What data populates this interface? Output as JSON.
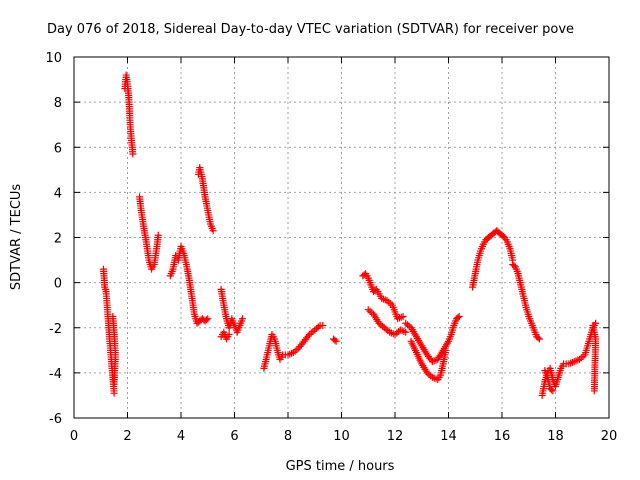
{
  "chart_data": {
    "type": "scatter",
    "title": "Day 076 of 2018, Sidereal Day-to-day VTEC variation (SDTVAR) for receiver pove",
    "xlabel": "GPS time / hours",
    "ylabel": "SDTVAR / TECUs",
    "xlim": [
      0,
      20
    ],
    "ylim": [
      -6,
      10
    ],
    "x_ticks": [
      "0",
      "2",
      "4",
      "6",
      "8",
      "10",
      "12",
      "14",
      "16",
      "18",
      "20"
    ],
    "y_ticks": [
      "-6",
      "-4",
      "-2",
      "0",
      "2",
      "4",
      "6",
      "8",
      "10"
    ],
    "grid": true,
    "marker": "+",
    "color": "#ff0000",
    "series": [
      {
        "name": "SDTVAR",
        "segments": [
          [
            [
              1.1,
              0.6
            ],
            [
              1.15,
              -0.2
            ],
            [
              1.2,
              -0.4
            ],
            [
              1.25,
              -1.2
            ],
            [
              1.3,
              -2.0
            ],
            [
              1.35,
              -2.8
            ],
            [
              1.4,
              -3.5
            ],
            [
              1.45,
              -4.2
            ],
            [
              1.5,
              -4.9
            ]
          ],
          [
            [
              1.45,
              -1.5
            ],
            [
              1.5,
              -2.2
            ],
            [
              1.55,
              -3.2
            ],
            [
              1.5,
              -4.5
            ]
          ],
          [
            [
              1.9,
              8.6
            ],
            [
              1.95,
              9.2
            ],
            [
              2.0,
              8.8
            ],
            [
              2.05,
              8.2
            ],
            [
              2.1,
              7.0
            ],
            [
              2.15,
              6.3
            ],
            [
              2.2,
              5.7
            ]
          ],
          [
            [
              2.45,
              3.8
            ],
            [
              2.5,
              3.3
            ],
            [
              2.6,
              2.5
            ],
            [
              2.7,
              1.8
            ],
            [
              2.8,
              1.0
            ],
            [
              2.9,
              0.6
            ],
            [
              3.0,
              0.8
            ],
            [
              3.1,
              1.6
            ],
            [
              3.15,
              2.1
            ]
          ],
          [
            [
              3.6,
              0.3
            ],
            [
              3.7,
              0.6
            ],
            [
              3.8,
              1.2
            ],
            [
              3.9,
              1.0
            ],
            [
              4.0,
              1.6
            ],
            [
              4.1,
              1.3
            ],
            [
              4.2,
              0.8
            ],
            [
              4.3,
              0.2
            ],
            [
              4.4,
              -0.6
            ],
            [
              4.5,
              -1.4
            ],
            [
              4.6,
              -1.8
            ],
            [
              4.7,
              -1.7
            ],
            [
              4.8,
              -1.6
            ],
            [
              4.9,
              -1.7
            ],
            [
              5.0,
              -1.6
            ]
          ],
          [
            [
              4.65,
              4.8
            ],
            [
              4.7,
              5.1
            ],
            [
              4.8,
              4.6
            ],
            [
              4.9,
              3.8
            ],
            [
              5.0,
              3.2
            ],
            [
              5.1,
              2.6
            ],
            [
              5.2,
              2.3
            ]
          ],
          [
            [
              5.5,
              -0.3
            ],
            [
              5.6,
              -1.0
            ],
            [
              5.7,
              -1.6
            ],
            [
              5.8,
              -2.0
            ],
            [
              5.9,
              -1.6
            ],
            [
              6.0,
              -1.9
            ],
            [
              6.1,
              -2.2
            ],
            [
              6.2,
              -1.9
            ],
            [
              6.3,
              -1.6
            ]
          ],
          [
            [
              5.5,
              -2.4
            ],
            [
              5.6,
              -2.2
            ],
            [
              5.7,
              -2.5
            ],
            [
              5.8,
              -2.3
            ]
          ],
          [
            [
              7.1,
              -3.8
            ],
            [
              7.2,
              -3.3
            ],
            [
              7.3,
              -2.8
            ],
            [
              7.4,
              -2.3
            ],
            [
              7.5,
              -2.5
            ],
            [
              7.6,
              -3.0
            ],
            [
              7.7,
              -3.4
            ],
            [
              7.8,
              -3.2
            ],
            [
              8.0,
              -3.2
            ],
            [
              8.2,
              -3.1
            ],
            [
              8.4,
              -2.9
            ],
            [
              8.6,
              -2.6
            ],
            [
              8.8,
              -2.3
            ],
            [
              9.0,
              -2.1
            ],
            [
              9.2,
              -1.9
            ],
            [
              9.3,
              -1.9
            ]
          ],
          [
            [
              9.7,
              -2.5
            ],
            [
              9.8,
              -2.6
            ]
          ],
          [
            [
              10.8,
              0.3
            ],
            [
              10.9,
              0.4
            ],
            [
              11.0,
              0.2
            ],
            [
              11.1,
              -0.1
            ],
            [
              11.2,
              -0.4
            ],
            [
              11.3,
              -0.3
            ],
            [
              11.4,
              -0.5
            ],
            [
              11.5,
              -0.7
            ],
            [
              11.7,
              -0.8
            ],
            [
              11.9,
              -1.0
            ],
            [
              12.0,
              -1.3
            ],
            [
              12.1,
              -1.6
            ],
            [
              12.3,
              -1.5
            ]
          ],
          [
            [
              11.0,
              -1.2
            ],
            [
              11.2,
              -1.4
            ],
            [
              11.4,
              -1.8
            ],
            [
              11.6,
              -2.0
            ],
            [
              11.8,
              -2.2
            ],
            [
              12.0,
              -2.3
            ],
            [
              12.2,
              -2.1
            ],
            [
              12.4,
              -2.2
            ]
          ],
          [
            [
              12.4,
              -1.8
            ],
            [
              12.6,
              -2.0
            ],
            [
              12.8,
              -2.4
            ],
            [
              13.0,
              -2.8
            ],
            [
              13.2,
              -3.2
            ],
            [
              13.4,
              -3.5
            ],
            [
              13.6,
              -3.4
            ],
            [
              13.8,
              -3.0
            ],
            [
              14.0,
              -2.6
            ],
            [
              14.1,
              -2.3
            ],
            [
              14.2,
              -1.9
            ],
            [
              14.3,
              -1.6
            ],
            [
              14.4,
              -1.5
            ]
          ],
          [
            [
              12.6,
              -2.6
            ],
            [
              12.8,
              -3.1
            ],
            [
              13.0,
              -3.6
            ],
            [
              13.2,
              -4.0
            ],
            [
              13.4,
              -4.2
            ],
            [
              13.6,
              -4.3
            ],
            [
              13.7,
              -4.1
            ],
            [
              13.8,
              -3.6
            ],
            [
              13.9,
              -3.0
            ]
          ],
          [
            [
              14.9,
              -0.2
            ],
            [
              15.0,
              0.4
            ],
            [
              15.1,
              1.0
            ],
            [
              15.2,
              1.4
            ],
            [
              15.3,
              1.7
            ],
            [
              15.4,
              1.9
            ],
            [
              15.5,
              2.0
            ],
            [
              15.6,
              2.1
            ],
            [
              15.7,
              2.2
            ],
            [
              15.8,
              2.3
            ],
            [
              15.9,
              2.2
            ],
            [
              16.0,
              2.1
            ],
            [
              16.1,
              2.0
            ],
            [
              16.2,
              1.8
            ],
            [
              16.3,
              1.5
            ],
            [
              16.4,
              1.0
            ]
          ],
          [
            [
              16.4,
              0.8
            ],
            [
              16.5,
              0.7
            ],
            [
              16.6,
              0.4
            ],
            [
              16.7,
              -0.1
            ],
            [
              16.8,
              -0.6
            ],
            [
              16.9,
              -1.1
            ],
            [
              17.0,
              -1.5
            ],
            [
              17.1,
              -1.8
            ],
            [
              17.2,
              -2.1
            ],
            [
              17.3,
              -2.4
            ],
            [
              17.4,
              -2.5
            ]
          ],
          [
            [
              17.5,
              -5.0
            ],
            [
              17.6,
              -4.4
            ],
            [
              17.7,
              -4.0
            ],
            [
              17.8,
              -3.8
            ],
            [
              17.9,
              -4.3
            ],
            [
              18.0,
              -4.6
            ],
            [
              18.1,
              -4.2
            ],
            [
              18.2,
              -3.8
            ],
            [
              18.3,
              -3.6
            ],
            [
              18.5,
              -3.6
            ],
            [
              18.7,
              -3.5
            ],
            [
              18.9,
              -3.4
            ],
            [
              19.1,
              -3.2
            ],
            [
              19.2,
              -2.8
            ],
            [
              19.3,
              -2.4
            ],
            [
              19.4,
              -2.0
            ],
            [
              19.5,
              -1.8
            ]
          ],
          [
            [
              17.6,
              -3.9
            ],
            [
              17.7,
              -4.2
            ],
            [
              17.8,
              -4.7
            ],
            [
              17.9,
              -4.8
            ]
          ],
          [
            [
              19.4,
              -1.9
            ],
            [
              19.5,
              -2.5
            ],
            [
              19.45,
              -4.8
            ]
          ]
        ]
      }
    ]
  }
}
